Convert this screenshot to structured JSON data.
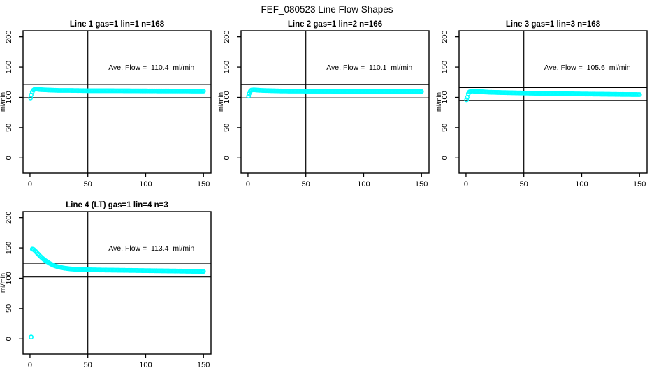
{
  "figure": {
    "title": "FEF_080523  Line Flow Shapes",
    "background_color": "#ffffff",
    "point_color": "#00FFFF",
    "line_color": "#000000"
  },
  "chart_data": [
    {
      "type": "scatter",
      "title": "Line 1 gas=1 lin=1 n=168",
      "gas": 1,
      "lin": 1,
      "n": 168,
      "annotation": "Ave. Flow =  110.4  ml/min",
      "ave_flow": 110.4,
      "ylabel": "ml/min",
      "xlabel": "",
      "xticks": [
        0,
        50,
        100,
        150
      ],
      "yticks": [
        0,
        50,
        100,
        150,
        200
      ],
      "xlim": [
        -6,
        156.5
      ],
      "ylim": [
        -25,
        210
      ],
      "vline": 50,
      "hlines": [
        121.4,
        99.4
      ],
      "segments": [
        [
          [
            0.5,
            99
          ],
          [
            1,
            104
          ],
          [
            2,
            109
          ],
          [
            3,
            112
          ],
          [
            4,
            113.5
          ],
          [
            6,
            113.5
          ],
          [
            8,
            113
          ],
          [
            12,
            112.5
          ],
          [
            18,
            112
          ],
          [
            25,
            111.5
          ],
          [
            35,
            111.5
          ],
          [
            50,
            111
          ],
          [
            70,
            111
          ],
          [
            90,
            110.8
          ],
          [
            110,
            110.6
          ],
          [
            130,
            110.5
          ],
          [
            150,
            110.4
          ]
        ]
      ]
    },
    {
      "type": "scatter",
      "title": "Line 2 gas=1 lin=2 n=166",
      "gas": 1,
      "lin": 2,
      "n": 166,
      "annotation": "Ave. Flow =  110.1  ml/min",
      "ave_flow": 110.1,
      "ylabel": "ml/min",
      "xlabel": "",
      "xticks": [
        0,
        50,
        100,
        150
      ],
      "yticks": [
        0,
        50,
        100,
        150,
        200
      ],
      "xlim": [
        -6,
        156.5
      ],
      "ylim": [
        -25,
        210
      ],
      "vline": 50,
      "hlines": [
        121.1,
        99.1
      ],
      "segments": [
        [
          [
            0.5,
            102
          ],
          [
            1,
            106
          ],
          [
            2,
            110
          ],
          [
            3,
            112
          ],
          [
            5,
            112.5
          ],
          [
            8,
            112
          ],
          [
            12,
            111.5
          ],
          [
            20,
            111
          ],
          [
            30,
            110.5
          ],
          [
            50,
            110.3
          ],
          [
            70,
            110.2
          ],
          [
            90,
            110
          ],
          [
            110,
            110
          ],
          [
            130,
            109.9
          ],
          [
            150,
            109.8
          ]
        ]
      ]
    },
    {
      "type": "scatter",
      "title": "Line 3 gas=1 lin=3 n=168",
      "gas": 1,
      "lin": 3,
      "n": 168,
      "annotation": "Ave. Flow =  105.6  ml/min",
      "ave_flow": 105.6,
      "ylabel": "ml/min",
      "xlabel": "",
      "xticks": [
        0,
        50,
        100,
        150
      ],
      "yticks": [
        0,
        50,
        100,
        150,
        200
      ],
      "xlim": [
        -6,
        156.5
      ],
      "ylim": [
        -25,
        210
      ],
      "vline": 50,
      "hlines": [
        116.2,
        95.0
      ],
      "segments": [
        [
          [
            0.5,
            96
          ],
          [
            1,
            100
          ],
          [
            2,
            106
          ],
          [
            3,
            109
          ],
          [
            5,
            110.5
          ],
          [
            8,
            110
          ],
          [
            12,
            109.5
          ],
          [
            20,
            108.5
          ],
          [
            30,
            108
          ],
          [
            45,
            107.3
          ],
          [
            60,
            106.8
          ],
          [
            80,
            106.2
          ],
          [
            100,
            105.6
          ],
          [
            120,
            105.2
          ],
          [
            135,
            104.8
          ],
          [
            150,
            104.6
          ]
        ]
      ]
    },
    {
      "type": "scatter",
      "title": "Line 4 (LT) gas=1 lin=4 n=3",
      "gas": 1,
      "lin": 4,
      "n": 3,
      "annotation": "Ave. Flow =  113.4  ml/min",
      "ave_flow": 113.4,
      "ylabel": "ml/min",
      "xlabel": "",
      "xticks": [
        0,
        50,
        100,
        150
      ],
      "yticks": [
        0,
        50,
        100,
        150,
        200
      ],
      "xlim": [
        -6,
        156.5
      ],
      "ylim": [
        -25,
        210
      ],
      "vline": 50,
      "hlines": [
        124.7,
        102.1
      ],
      "segments": [
        [
          [
            1,
            3
          ]
        ],
        [
          [
            2,
            148
          ],
          [
            3,
            147.5
          ],
          [
            4,
            146
          ],
          [
            5,
            144
          ],
          [
            7,
            140
          ],
          [
            9,
            136
          ],
          [
            11,
            132.5
          ],
          [
            13,
            129.5
          ],
          [
            15,
            127
          ],
          [
            17,
            124.5
          ],
          [
            20,
            121.5
          ],
          [
            23,
            119.5
          ],
          [
            26,
            118
          ],
          [
            30,
            116.5
          ],
          [
            35,
            115.3
          ],
          [
            40,
            114.6
          ],
          [
            50,
            114
          ],
          [
            60,
            113.6
          ],
          [
            75,
            113.2
          ],
          [
            90,
            112.8
          ],
          [
            105,
            112.4
          ],
          [
            120,
            112
          ],
          [
            135,
            111.6
          ],
          [
            150,
            111.2
          ]
        ]
      ]
    }
  ]
}
